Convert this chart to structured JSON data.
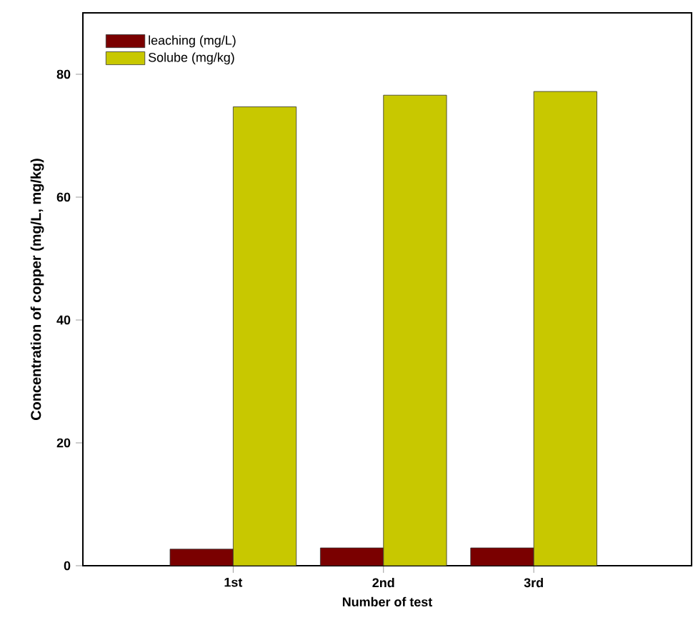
{
  "chart_data": {
    "type": "bar",
    "xlabel": "Number of  test",
    "ylabel": "Concentration of copper (mg/L, mg/kg)",
    "categories": [
      "1st",
      "2nd",
      "3rd"
    ],
    "series": [
      {
        "name": "leaching (mg/L)",
        "color": "#7a0000",
        "values": [
          2.7,
          2.9,
          2.9
        ]
      },
      {
        "name": "Solube (mg/kg)",
        "color": "#c8c800",
        "values": [
          74.7,
          76.6,
          77.2
        ]
      }
    ],
    "ylim": [
      0,
      90
    ],
    "yticks": [
      0,
      20,
      40,
      60,
      80
    ],
    "legend": "top left",
    "grid": false
  }
}
